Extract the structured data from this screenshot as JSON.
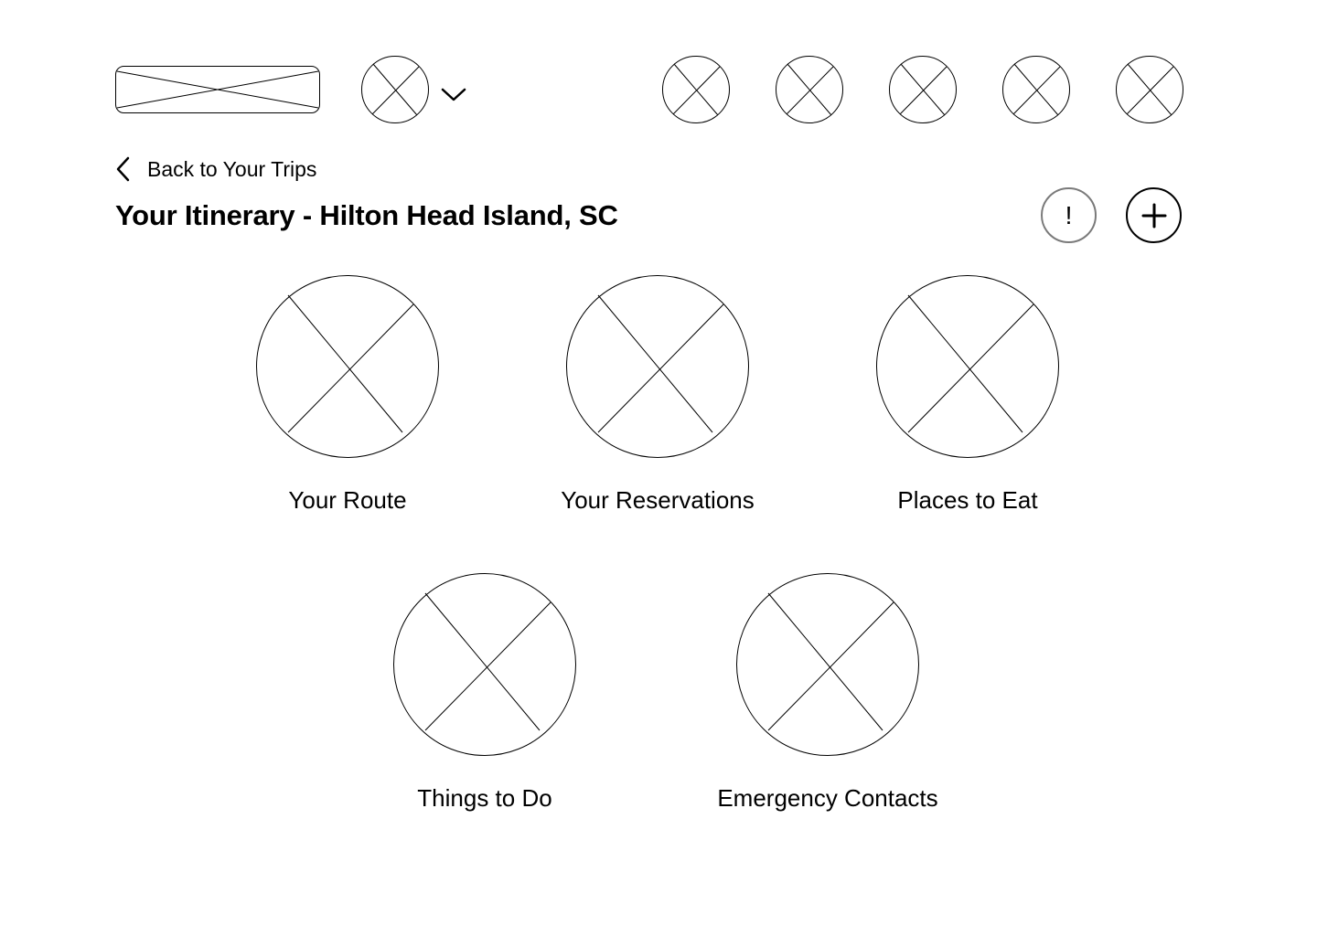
{
  "header": {
    "logo_icon": "image-placeholder-icon",
    "profile_icon": "image-placeholder-icon",
    "profile_menu_icon": "chevron-down-icon",
    "nav_icons": [
      "image-placeholder-icon",
      "image-placeholder-icon",
      "image-placeholder-icon",
      "image-placeholder-icon",
      "image-placeholder-icon"
    ]
  },
  "back_link": {
    "icon": "chevron-left-icon",
    "label": "Back to Your Trips"
  },
  "page": {
    "title": "Your Itinerary - Hilton Head Island, SC"
  },
  "actions": {
    "alert_label": "!",
    "alert_icon": "exclamation-icon",
    "add_icon": "plus-icon"
  },
  "cards": [
    {
      "label": "Your Route",
      "icon": "image-placeholder-icon"
    },
    {
      "label": "Your Reservations",
      "icon": "image-placeholder-icon"
    },
    {
      "label": "Places to Eat",
      "icon": "image-placeholder-icon"
    },
    {
      "label": "Things to Do",
      "icon": "image-placeholder-icon"
    },
    {
      "label": "Emergency Contacts",
      "icon": "image-placeholder-icon"
    }
  ]
}
